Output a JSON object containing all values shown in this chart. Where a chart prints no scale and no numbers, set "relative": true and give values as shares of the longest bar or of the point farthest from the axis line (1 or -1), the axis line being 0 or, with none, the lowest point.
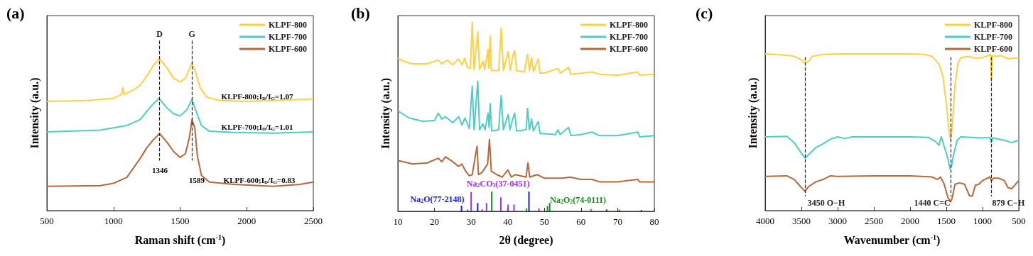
{
  "chart_data": [
    {
      "type": "line",
      "title": "(a)",
      "xlabel": "Raman shift (cm$^{-1}$)",
      "ylabel": "Intensity (a.u.)",
      "relative": true,
      "xlim": [
        500,
        2500
      ],
      "xticks": [
        500,
        1000,
        1500,
        2000,
        2500
      ],
      "legend": "top right",
      "grid": false,
      "series": [
        {
          "name": "KLPF-800",
          "color": "#ffd042",
          "x": [
            500,
            800,
            1000,
            1060,
            1070,
            1080,
            1150,
            1200,
            1250,
            1300,
            1346,
            1400,
            1450,
            1500,
            1540,
            1570,
            1589,
            1620,
            1650,
            1700,
            1800,
            2000,
            2200,
            2500
          ],
          "values": [
            0.72,
            0.725,
            0.74,
            0.765,
            0.81,
            0.765,
            0.795,
            0.826,
            0.888,
            0.958,
            1.0,
            0.942,
            0.872,
            0.849,
            0.872,
            0.935,
            0.974,
            0.9,
            0.81,
            0.748,
            0.725,
            0.72,
            0.725,
            0.736
          ]
        },
        {
          "name": "KLPF-700",
          "color": "#4ecdc4",
          "x": [
            500,
            900,
            1100,
            1200,
            1280,
            1340,
            1400,
            1450,
            1500,
            1550,
            1589,
            1620,
            1660,
            1720,
            1900,
            2200,
            2500
          ],
          "values": [
            0.519,
            0.53,
            0.561,
            0.6,
            0.686,
            0.74,
            0.678,
            0.639,
            0.624,
            0.663,
            0.733,
            0.655,
            0.561,
            0.523,
            0.515,
            0.51,
            0.519
          ]
        },
        {
          "name": "KLPF-600",
          "color": "#b5683c",
          "x": [
            500,
            900,
            1000,
            1100,
            1150,
            1200,
            1250,
            1300,
            1346,
            1400,
            1450,
            1500,
            1540,
            1570,
            1589,
            1610,
            1630,
            1660,
            1720,
            1900,
            2200,
            2400,
            2500
          ],
          "values": [
            0.16,
            0.165,
            0.18,
            0.219,
            0.281,
            0.344,
            0.414,
            0.468,
            0.507,
            0.453,
            0.39,
            0.351,
            0.375,
            0.484,
            0.6,
            0.546,
            0.358,
            0.233,
            0.188,
            0.173,
            0.16,
            0.173,
            0.188
          ]
        }
      ],
      "ref_lines": [
        {
          "axis": "x",
          "value": 1346,
          "label": "D",
          "line_style": "dashed"
        },
        {
          "axis": "x",
          "value": 1589,
          "label": "G",
          "line_style": "dashed"
        }
      ],
      "annotations": [
        "1346",
        "1589",
        "KLPF-800;I$_{D}$/I$_{G}$=1.07",
        "KLPF-700;I$_{D}$/I$_{G}$=1.01",
        "KLPF-600;I$_{D}$/I$_{G}$=0.83"
      ]
    },
    {
      "type": "line",
      "title": "(b)",
      "xlabel": "2θ (degree)",
      "ylabel": "Intensity (a.u.)",
      "relative": true,
      "xlim": [
        10,
        80
      ],
      "xticks": [
        10,
        20,
        30,
        40,
        50,
        60,
        70,
        80
      ],
      "legend": "top right",
      "grid": false,
      "series": [
        {
          "name": "KLPF-800",
          "color": "#ffd042",
          "x": [
            10,
            12,
            14,
            18,
            21,
            22,
            23.5,
            25,
            26.5,
            27.5,
            28.2,
            29,
            29.8,
            30.3,
            30.8,
            31.8,
            32.3,
            33.2,
            33.7,
            34.6,
            34.8,
            35.2,
            35.5,
            37.5,
            38.2,
            38.8,
            40.1,
            40.7,
            41.4,
            41.9,
            42.4,
            44.5,
            45.4,
            45.9,
            46.5,
            47,
            48.3,
            48.8,
            50,
            53.7,
            54.3,
            56.6,
            57.2,
            60,
            63,
            65,
            70,
            75.5,
            76,
            80
          ],
          "values": [
            0.81,
            0.79,
            0.78,
            0.78,
            0.8,
            0.78,
            0.8,
            0.775,
            0.806,
            0.775,
            0.81,
            0.76,
            0.756,
            1.0,
            0.75,
            0.95,
            0.75,
            0.794,
            0.75,
            0.856,
            0.756,
            0.925,
            0.744,
            0.744,
            0.969,
            0.744,
            0.844,
            0.744,
            0.825,
            0.85,
            0.744,
            0.737,
            0.831,
            0.744,
            0.812,
            0.737,
            0.806,
            0.731,
            0.731,
            0.756,
            0.731,
            0.762,
            0.725,
            0.73,
            0.737,
            0.725,
            0.719,
            0.737,
            0.72,
            0.725
          ]
        },
        {
          "name": "KLPF-700",
          "color": "#4ecdc4",
          "x": [
            10,
            13,
            17,
            20,
            21,
            22,
            23,
            25,
            26.6,
            27.5,
            28.3,
            29.5,
            30.3,
            30.8,
            31.8,
            32.3,
            33.2,
            33.8,
            34.6,
            34.9,
            35.2,
            35.6,
            37.5,
            38.2,
            38.8,
            40.1,
            40.6,
            41.4,
            41.9,
            42.4,
            45,
            45.4,
            45.9,
            46.5,
            47,
            48.3,
            48.8,
            53,
            53.7,
            54.3,
            56.6,
            57.2,
            60,
            63,
            65,
            70,
            75.5,
            76,
            80
          ],
          "values": [
            0.531,
            0.494,
            0.475,
            0.481,
            0.519,
            0.488,
            0.5,
            0.469,
            0.5,
            0.456,
            0.494,
            0.438,
            0.662,
            0.431,
            0.688,
            0.431,
            0.462,
            0.431,
            0.519,
            0.444,
            0.569,
            0.425,
            0.431,
            0.612,
            0.431,
            0.512,
            0.431,
            0.494,
            0.519,
            0.425,
            0.431,
            0.544,
            0.431,
            0.488,
            0.425,
            0.475,
            0.412,
            0.406,
            0.431,
            0.406,
            0.444,
            0.4,
            0.406,
            0.419,
            0.4,
            0.4,
            0.419,
            0.394,
            0.4
          ]
        },
        {
          "name": "KLPF-600",
          "color": "#b5683c",
          "x": [
            10,
            14,
            18,
            21,
            22,
            23,
            25,
            26.5,
            27.5,
            28.5,
            29.5,
            30.3,
            31.6,
            32,
            33,
            34.5,
            35,
            35.5,
            37,
            38.5,
            40,
            41,
            42,
            45,
            45.5,
            46,
            48,
            50,
            55,
            57,
            60,
            63,
            65,
            70,
            75.5,
            76,
            80
          ],
          "values": [
            0.269,
            0.25,
            0.256,
            0.281,
            0.262,
            0.288,
            0.262,
            0.238,
            0.25,
            0.212,
            0.188,
            0.194,
            0.344,
            0.194,
            0.206,
            0.25,
            0.381,
            0.212,
            0.194,
            0.181,
            0.219,
            0.181,
            0.194,
            0.181,
            0.256,
            0.181,
            0.194,
            0.175,
            0.175,
            0.181,
            0.169,
            0.169,
            0.156,
            0.156,
            0.169,
            0.156,
            0.156
          ]
        },
        {
          "name": "Na$_{2}$O(77-2148)",
          "type": "bar",
          "color": "#1a1aff",
          "x": [
            27.8,
            32.2,
            46.2,
            67.4,
            76.9
          ],
          "values": [
            0.03,
            0.044,
            0.104,
            0.01,
            0.007
          ]
        },
        {
          "name": "Na$_{2}$CO$_{3}$(37-0451)",
          "type": "bar",
          "color": "#9b30ff",
          "x": [
            30.0,
            33.0,
            34.2,
            38.1,
            40.1,
            41.7,
            48.5,
            62.7
          ],
          "values": [
            0.102,
            0.01,
            0.044,
            0.074,
            0.036,
            0.036,
            0.015,
            0.012
          ]
        },
        {
          "name": "Na$_{2}$O$_{2}$(74-0111)",
          "type": "bar",
          "color": "#109010",
          "x": [
            28.6,
            35.2,
            44.7,
            50.4,
            51.0,
            70.0
          ],
          "values": [
            0.009,
            0.104,
            0.015,
            0.027,
            0.044,
            0.009
          ]
        }
      ]
    },
    {
      "type": "line",
      "title": "(c)",
      "xlabel": "Wavenumber (cm$^{-1}$)",
      "ylabel": "Intensity (a.u.)",
      "relative": true,
      "xlim": [
        4000,
        500
      ],
      "xticks": [
        4000,
        3500,
        3000,
        2500,
        2000,
        1500,
        1000,
        500
      ],
      "legend": "top right",
      "grid": false,
      "series": [
        {
          "name": "KLPF-800",
          "color": "#ffd042",
          "x": [
            4000,
            3700,
            3600,
            3500,
            3450,
            3400,
            3350,
            3200,
            3000,
            2500,
            2000,
            1800,
            1700,
            1650,
            1600,
            1550,
            1500,
            1460,
            1440,
            1420,
            1380,
            1340,
            1300,
            1200,
            1100,
            1000,
            920,
            890,
            879,
            870,
            800,
            750,
            650,
            500
          ],
          "values": [
            1.0,
            0.992,
            0.985,
            0.962,
            0.94,
            0.955,
            0.985,
            0.997,
            1.0,
            1.0,
            1.0,
            0.997,
            0.985,
            0.962,
            0.932,
            0.864,
            0.683,
            0.502,
            0.449,
            0.532,
            0.804,
            0.94,
            0.977,
            0.985,
            0.973,
            0.977,
            0.99,
            0.997,
            0.834,
            0.988,
            0.985,
            0.99,
            0.97,
            0.977
          ]
        },
        {
          "name": "KLPF-700",
          "color": "#4ecdc4",
          "x": [
            4000,
            3700,
            3600,
            3500,
            3450,
            3400,
            3300,
            3200,
            3100,
            3000,
            2900,
            2800,
            2500,
            2000,
            1750,
            1650,
            1600,
            1570,
            1530,
            1480,
            1450,
            1430,
            1400,
            1350,
            1300,
            1000,
            900,
            879,
            860,
            700,
            600,
            500
          ],
          "values": [
            0.471,
            0.474,
            0.434,
            0.366,
            0.335,
            0.358,
            0.403,
            0.426,
            0.456,
            0.471,
            0.46,
            0.471,
            0.471,
            0.471,
            0.468,
            0.441,
            0.418,
            0.471,
            0.411,
            0.335,
            0.267,
            0.282,
            0.358,
            0.449,
            0.471,
            0.464,
            0.468,
            0.434,
            0.464,
            0.449,
            0.434,
            0.449
          ]
        },
        {
          "name": "KLPF-600",
          "color": "#b5683c",
          "x": [
            4000,
            3700,
            3600,
            3500,
            3450,
            3400,
            3300,
            3200,
            3100,
            3000,
            2500,
            2000,
            1700,
            1620,
            1580,
            1530,
            1480,
            1450,
            1440,
            1420,
            1380,
            1320,
            1250,
            1180,
            1140,
            1100,
            1050,
            1000,
            900,
            879,
            850,
            780,
            700,
            650,
            600,
            500
          ],
          "values": [
            0.218,
            0.222,
            0.199,
            0.147,
            0.124,
            0.154,
            0.184,
            0.199,
            0.222,
            0.218,
            0.222,
            0.222,
            0.215,
            0.199,
            0.215,
            0.169,
            0.086,
            0.063,
            0.056,
            0.079,
            0.169,
            0.177,
            0.169,
            0.094,
            0.094,
            0.162,
            0.169,
            0.192,
            0.215,
            0.192,
            0.207,
            0.207,
            0.192,
            0.147,
            0.139,
            0.192
          ]
        }
      ],
      "ref_lines": [
        {
          "axis": "x",
          "value": 3450,
          "label": "3450 O−H",
          "line_style": "dashed"
        },
        {
          "axis": "x",
          "value": 1440,
          "label": "1440 C=C",
          "line_style": "dashed"
        },
        {
          "axis": "x",
          "value": 879,
          "label": "879 C−H",
          "line_style": "dashed"
        }
      ]
    }
  ]
}
